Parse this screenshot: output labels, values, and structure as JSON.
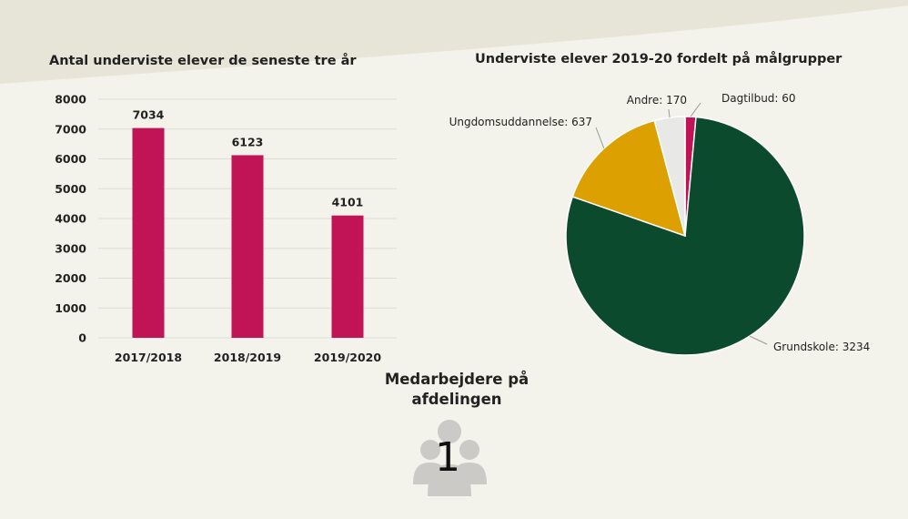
{
  "colors": {
    "background": "#f3f2eb",
    "wave": "#e7e5d8",
    "bar": "#c01457",
    "grundskole": "#0c4a2e",
    "ungdomsuddannelse": "#dca000",
    "andre": "#e8e8e6",
    "dagtilbud": "#c01457",
    "people_icon": "#cbcac6"
  },
  "chart_data": [
    {
      "type": "bar",
      "title": "Antal underviste elever de seneste tre år",
      "categories": [
        "2017/2018",
        "2018/2019",
        "2019/2020"
      ],
      "values": [
        7034,
        6123,
        4101
      ],
      "data_labels": [
        "7034",
        "6123",
        "4101"
      ],
      "yticks": [
        "0",
        "1000",
        "2000",
        "3000",
        "4000",
        "5000",
        "6000",
        "7000",
        "8000"
      ],
      "ylim": [
        0,
        8000
      ],
      "grid": true,
      "legend": "none"
    },
    {
      "type": "pie",
      "title": "Underviste elever 2019-20 fordelt på målgrupper",
      "slices": [
        {
          "label": "Dagtilbud: 60",
          "value": 60,
          "color_key": "dagtilbud"
        },
        {
          "label": "Grundskole: 3234",
          "value": 3234,
          "color_key": "grundskole"
        },
        {
          "label": "Ungdomsuddannelse: 637",
          "value": 637,
          "color_key": "ungdomsuddannelse"
        },
        {
          "label": "Andre: 170",
          "value": 170,
          "color_key": "andre"
        }
      ],
      "legend": "none"
    }
  ],
  "staff": {
    "title": "Medarbejdere på afdelingen",
    "count": "1",
    "icon": "people-group-icon"
  }
}
